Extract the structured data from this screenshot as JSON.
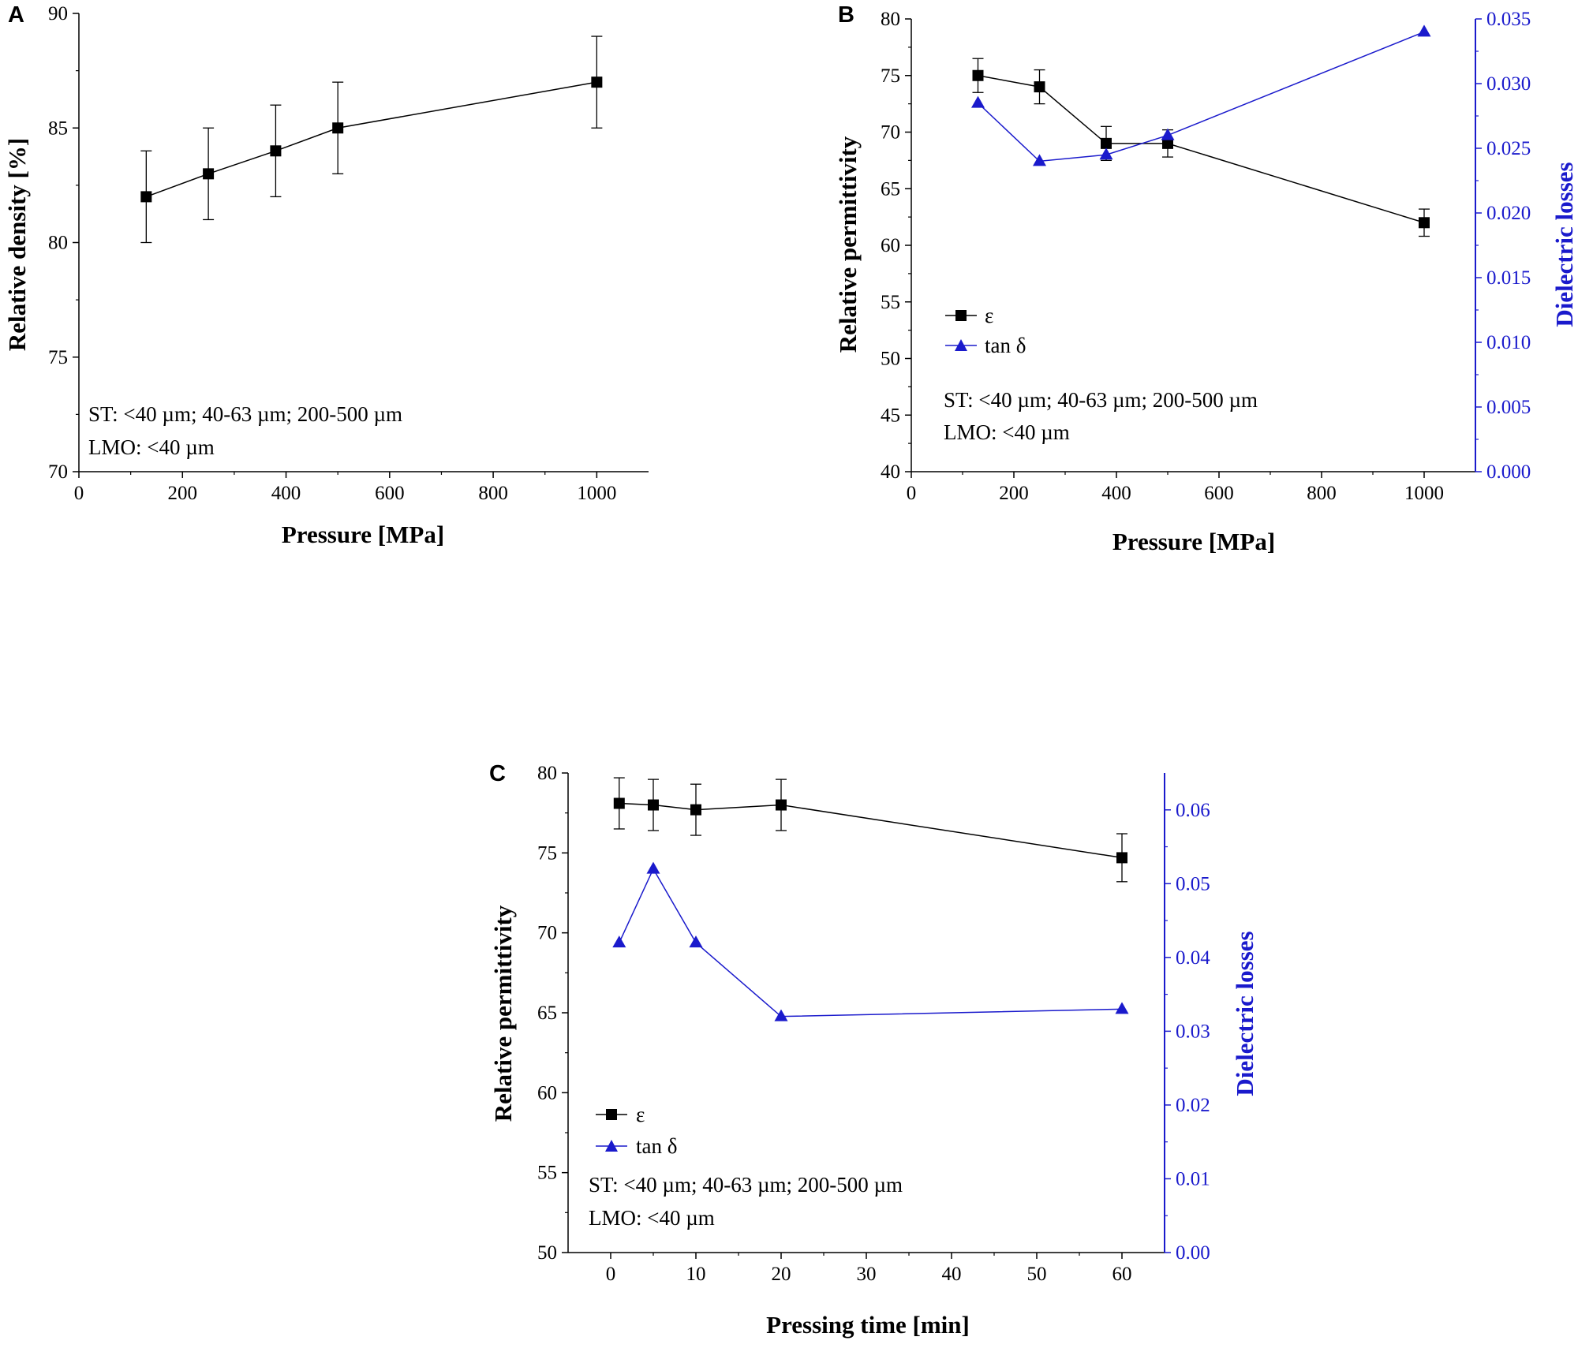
{
  "colors": {
    "primary": "#000000",
    "secondary": "#1a1acc",
    "background": "#ffffff"
  },
  "chart_data": [
    {
      "type": "line",
      "panel_label": "A",
      "xlabel": "Pressure [MPa]",
      "ylabel": "Relative density [%]",
      "xlim": [
        0,
        1100
      ],
      "ylim": [
        70,
        90
      ],
      "x_ticks": [
        0,
        200,
        400,
        600,
        800,
        1000
      ],
      "y_ticks": [
        70,
        75,
        80,
        85,
        90
      ],
      "x_tick_labels": [
        "0",
        "200",
        "400",
        "600",
        "800",
        "1000"
      ],
      "y_tick_labels": [
        "70",
        "75",
        "80",
        "85",
        "90"
      ],
      "annotations": [
        "ST: <40 µm; 40-63 µm; 200-500 µm",
        "LMO: <40 µm"
      ],
      "series": [
        {
          "name": "Relative density",
          "axis": "left",
          "marker": "square",
          "color": "#000000",
          "x": [
            130,
            250,
            380,
            500,
            1000
          ],
          "y": [
            82,
            83,
            84,
            85,
            87
          ],
          "error": [
            2,
            2,
            2,
            2,
            2
          ]
        }
      ]
    },
    {
      "type": "line",
      "panel_label": "B",
      "xlabel": "Pressure [MPa]",
      "ylabel": "Relative permittivity",
      "y2label": "Dielectric losses",
      "xlim": [
        0,
        1100
      ],
      "ylim": [
        40,
        80
      ],
      "y2lim": [
        0,
        0.035
      ],
      "x_ticks": [
        0,
        200,
        400,
        600,
        800,
        1000
      ],
      "y_ticks": [
        40,
        45,
        50,
        55,
        60,
        65,
        70,
        75,
        80
      ],
      "y2_ticks": [
        0,
        0.005,
        0.01,
        0.015,
        0.02,
        0.025,
        0.03,
        0.035
      ],
      "x_tick_labels": [
        "0",
        "200",
        "400",
        "600",
        "800",
        "1000"
      ],
      "y_tick_labels": [
        "40",
        "45",
        "50",
        "55",
        "60",
        "65",
        "70",
        "75",
        "80"
      ],
      "y2_tick_labels": [
        "0.000",
        "0.005",
        "0.010",
        "0.015",
        "0.020",
        "0.025",
        "0.030",
        "0.035"
      ],
      "legend": [
        "ε",
        "tan δ"
      ],
      "annotations": [
        "ST: <40 µm; 40-63 µm; 200-500 µm",
        "LMO: <40 µm"
      ],
      "series": [
        {
          "name": "ε",
          "axis": "left",
          "marker": "square",
          "color": "#000000",
          "x": [
            130,
            250,
            380,
            500,
            1000
          ],
          "y": [
            75,
            74,
            69,
            69,
            62
          ],
          "error": [
            1.5,
            1.5,
            1.5,
            1.2,
            1.2
          ]
        },
        {
          "name": "tan δ",
          "axis": "right",
          "marker": "triangle",
          "color": "#1a1acc",
          "x": [
            130,
            250,
            380,
            500,
            1000
          ],
          "y": [
            0.0285,
            0.024,
            0.0245,
            0.026,
            0.034
          ]
        }
      ]
    },
    {
      "type": "line",
      "panel_label": "C",
      "xlabel": "Pressing time [min]",
      "ylabel": "Relative permittivity",
      "y2label": "Dielectric losses",
      "xlim": [
        -5,
        65
      ],
      "ylim": [
        50,
        80
      ],
      "y2lim": [
        0,
        0.065
      ],
      "x_ticks": [
        0,
        10,
        20,
        30,
        40,
        50,
        60
      ],
      "y_ticks": [
        50,
        55,
        60,
        65,
        70,
        75,
        80
      ],
      "y2_ticks": [
        0,
        0.01,
        0.02,
        0.03,
        0.04,
        0.05,
        0.06
      ],
      "x_tick_labels": [
        "0",
        "10",
        "20",
        "30",
        "40",
        "50",
        "60"
      ],
      "y_tick_labels": [
        "50",
        "55",
        "60",
        "65",
        "70",
        "75",
        "80"
      ],
      "y2_tick_labels": [
        "0.00",
        "0.01",
        "0.02",
        "0.03",
        "0.04",
        "0.05",
        "0.06"
      ],
      "legend": [
        "ε",
        "tan δ"
      ],
      "annotations": [
        "ST: <40 µm; 40-63 µm; 200-500 µm",
        "LMO: <40 µm"
      ],
      "series": [
        {
          "name": "ε",
          "axis": "left",
          "marker": "square",
          "color": "#000000",
          "x": [
            1,
            5,
            10,
            20,
            60
          ],
          "y": [
            78.1,
            78,
            77.7,
            78,
            74.7
          ],
          "error": [
            1.6,
            1.6,
            1.6,
            1.6,
            1.5
          ]
        },
        {
          "name": "tan δ",
          "axis": "right",
          "marker": "triangle",
          "color": "#1a1acc",
          "x": [
            1,
            5,
            10,
            20,
            60
          ],
          "y": [
            0.042,
            0.052,
            0.042,
            0.032,
            0.033
          ]
        }
      ]
    }
  ]
}
